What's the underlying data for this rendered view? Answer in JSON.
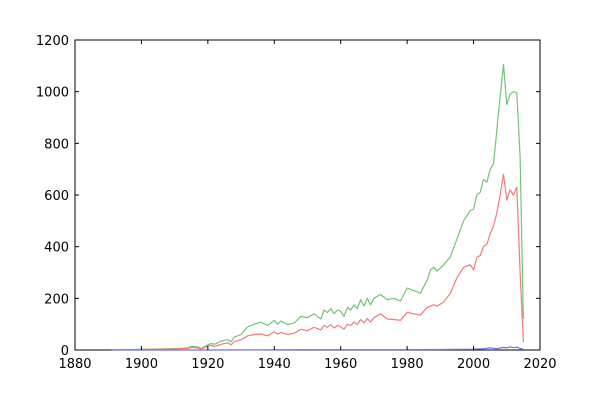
{
  "chart_data": {
    "type": "line",
    "title": "",
    "xlabel": "",
    "ylabel": "",
    "xlim": [
      1880,
      2020
    ],
    "ylim": [
      0,
      1200
    ],
    "grid": false,
    "x_ticks": [
      1880,
      1900,
      1920,
      1940,
      1960,
      1980,
      2000,
      2020
    ],
    "y_ticks": [
      0,
      200,
      400,
      600,
      800,
      1000,
      1200
    ],
    "x_tick_labels": [
      "1880",
      "1900",
      "1920",
      "1940",
      "1960",
      "1980",
      "2000",
      "2020"
    ],
    "y_tick_labels": [
      "0",
      "200",
      "400",
      "600",
      "800",
      "1000",
      "1200"
    ],
    "series": [
      {
        "color": "#74c476",
        "points": [
          [
            1891,
            0
          ],
          [
            1895,
            1
          ],
          [
            1898,
            2
          ],
          [
            1900,
            3
          ],
          [
            1903,
            3
          ],
          [
            1906,
            4
          ],
          [
            1909,
            5
          ],
          [
            1912,
            6
          ],
          [
            1914,
            8
          ],
          [
            1915,
            14
          ],
          [
            1917,
            12
          ],
          [
            1918,
            5
          ],
          [
            1920,
            20
          ],
          [
            1921,
            25
          ],
          [
            1922,
            22
          ],
          [
            1924,
            35
          ],
          [
            1926,
            40
          ],
          [
            1927,
            32
          ],
          [
            1928,
            50
          ],
          [
            1930,
            60
          ],
          [
            1932,
            90
          ],
          [
            1934,
            100
          ],
          [
            1936,
            108
          ],
          [
            1938,
            95
          ],
          [
            1940,
            115
          ],
          [
            1941,
            100
          ],
          [
            1942,
            112
          ],
          [
            1944,
            98
          ],
          [
            1946,
            105
          ],
          [
            1948,
            130
          ],
          [
            1950,
            125
          ],
          [
            1952,
            140
          ],
          [
            1954,
            120
          ],
          [
            1955,
            155
          ],
          [
            1956,
            145
          ],
          [
            1957,
            160
          ],
          [
            1958,
            140
          ],
          [
            1959,
            155
          ],
          [
            1960,
            150
          ],
          [
            1961,
            130
          ],
          [
            1962,
            165
          ],
          [
            1963,
            155
          ],
          [
            1964,
            175
          ],
          [
            1965,
            160
          ],
          [
            1966,
            195
          ],
          [
            1967,
            170
          ],
          [
            1968,
            200
          ],
          [
            1969,
            175
          ],
          [
            1970,
            200
          ],
          [
            1972,
            215
          ],
          [
            1974,
            195
          ],
          [
            1976,
            200
          ],
          [
            1978,
            190
          ],
          [
            1980,
            240
          ],
          [
            1982,
            230
          ],
          [
            1984,
            220
          ],
          [
            1986,
            270
          ],
          [
            1987,
            310
          ],
          [
            1988,
            320
          ],
          [
            1989,
            305
          ],
          [
            1991,
            330
          ],
          [
            1993,
            360
          ],
          [
            1995,
            430
          ],
          [
            1997,
            500
          ],
          [
            1999,
            540
          ],
          [
            2000,
            545
          ],
          [
            2001,
            600
          ],
          [
            2002,
            610
          ],
          [
            2003,
            660
          ],
          [
            2004,
            650
          ],
          [
            2005,
            700
          ],
          [
            2006,
            720
          ],
          [
            2007,
            850
          ],
          [
            2008,
            980
          ],
          [
            2009,
            1105
          ],
          [
            2010,
            950
          ],
          [
            2011,
            990
          ],
          [
            2012,
            1000
          ],
          [
            2013,
            995
          ],
          [
            2014,
            750
          ],
          [
            2015,
            120
          ]
        ]
      },
      {
        "color": "#f47a7a",
        "points": [
          [
            1891,
            0
          ],
          [
            1895,
            1
          ],
          [
            1898,
            1
          ],
          [
            1900,
            2
          ],
          [
            1903,
            2
          ],
          [
            1906,
            3
          ],
          [
            1909,
            4
          ],
          [
            1912,
            5
          ],
          [
            1914,
            6
          ],
          [
            1915,
            10
          ],
          [
            1917,
            8
          ],
          [
            1918,
            4
          ],
          [
            1920,
            15
          ],
          [
            1921,
            18
          ],
          [
            1922,
            14
          ],
          [
            1924,
            22
          ],
          [
            1926,
            28
          ],
          [
            1927,
            20
          ],
          [
            1928,
            32
          ],
          [
            1930,
            40
          ],
          [
            1932,
            55
          ],
          [
            1934,
            60
          ],
          [
            1936,
            62
          ],
          [
            1938,
            55
          ],
          [
            1940,
            70
          ],
          [
            1941,
            62
          ],
          [
            1942,
            68
          ],
          [
            1944,
            60
          ],
          [
            1946,
            65
          ],
          [
            1948,
            80
          ],
          [
            1950,
            75
          ],
          [
            1952,
            88
          ],
          [
            1954,
            78
          ],
          [
            1955,
            95
          ],
          [
            1956,
            88
          ],
          [
            1957,
            98
          ],
          [
            1958,
            85
          ],
          [
            1959,
            95
          ],
          [
            1960,
            90
          ],
          [
            1961,
            80
          ],
          [
            1962,
            100
          ],
          [
            1963,
            95
          ],
          [
            1964,
            108
          ],
          [
            1965,
            98
          ],
          [
            1966,
            118
          ],
          [
            1967,
            105
          ],
          [
            1968,
            122
          ],
          [
            1969,
            108
          ],
          [
            1970,
            125
          ],
          [
            1972,
            140
          ],
          [
            1974,
            120
          ],
          [
            1976,
            118
          ],
          [
            1978,
            115
          ],
          [
            1980,
            145
          ],
          [
            1982,
            140
          ],
          [
            1984,
            135
          ],
          [
            1986,
            165
          ],
          [
            1987,
            170
          ],
          [
            1988,
            175
          ],
          [
            1989,
            170
          ],
          [
            1991,
            185
          ],
          [
            1993,
            220
          ],
          [
            1995,
            280
          ],
          [
            1997,
            320
          ],
          [
            1999,
            330
          ],
          [
            2000,
            310
          ],
          [
            2001,
            360
          ],
          [
            2002,
            365
          ],
          [
            2003,
            400
          ],
          [
            2004,
            410
          ],
          [
            2005,
            450
          ],
          [
            2006,
            480
          ],
          [
            2007,
            530
          ],
          [
            2008,
            600
          ],
          [
            2009,
            680
          ],
          [
            2010,
            580
          ],
          [
            2011,
            620
          ],
          [
            2012,
            600
          ],
          [
            2013,
            630
          ],
          [
            2014,
            300
          ],
          [
            2015,
            30
          ]
        ]
      },
      {
        "color": "#6f6fe8",
        "points": [
          [
            1891,
            0
          ],
          [
            1920,
            0
          ],
          [
            1950,
            1
          ],
          [
            1980,
            1
          ],
          [
            1990,
            2
          ],
          [
            2000,
            3
          ],
          [
            2003,
            5
          ],
          [
            2005,
            8
          ],
          [
            2007,
            5
          ],
          [
            2009,
            10
          ],
          [
            2010,
            8
          ],
          [
            2011,
            12
          ],
          [
            2012,
            9
          ],
          [
            2013,
            11
          ],
          [
            2014,
            6
          ],
          [
            2015,
            2
          ]
        ]
      }
    ]
  }
}
